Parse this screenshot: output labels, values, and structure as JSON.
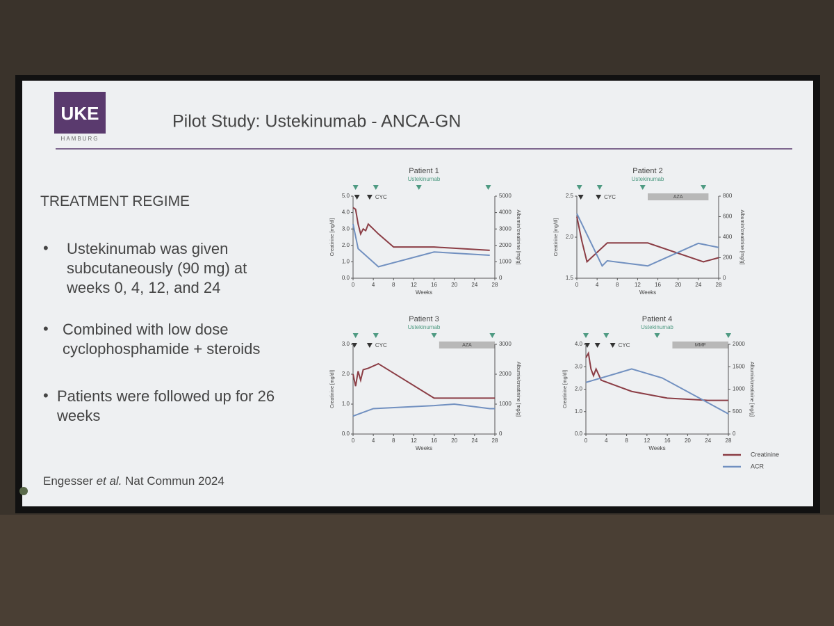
{
  "slide": {
    "logo": "UKE",
    "logo_sub": "HAMBURG",
    "title": "Pilot Study: Ustekinumab - ANCA-GN",
    "heading": "TREATMENT REGIME",
    "bullets": [
      "Ustekinumab was given subcutaneously (90 mg) at weeks 0, 4, 12, and 24",
      "Combined with low dose cyclophosphamide + steroids",
      "Patients were followed up for 26 weeks"
    ],
    "citation": {
      "authors": "Engesser",
      "etal": "et al.",
      "source": "Nat Commun 2024"
    }
  },
  "chart_data": [
    {
      "type": "line",
      "title": "Patient 1",
      "annotation": "Ustekinumab",
      "cyc_label": "CYC",
      "x_label": "Weeks",
      "y_label": "Creatinine [mg/dl]",
      "y2_label": "Albumin/creatinine [mg/g]",
      "ustekinumab_weeks": [
        0.5,
        4.5,
        13,
        26.7
      ],
      "cyc_weeks": [
        0.5,
        3
      ],
      "xlim": [
        0,
        28
      ],
      "xticks": [
        0,
        4,
        8,
        12,
        16,
        20,
        24,
        28
      ],
      "ylim": [
        0,
        5
      ],
      "yticks": [
        {
          "value": 0,
          "label": "0.0"
        },
        {
          "value": 1,
          "label": "1.0"
        },
        {
          "value": 2,
          "label": "2.0"
        },
        {
          "value": 3,
          "label": "3.0"
        },
        {
          "value": 4,
          "label": "4.0"
        },
        {
          "value": 5,
          "label": "5.0"
        }
      ],
      "y2lim": [
        0,
        5000
      ],
      "y2ticks": [
        0,
        1000,
        2000,
        3000,
        4000,
        5000
      ],
      "legend": false,
      "series": [
        {
          "name": "Creatinine",
          "color": "#8b3d45",
          "x": [
            0,
            0.5,
            1,
            1.5,
            2,
            2.5,
            3,
            4,
            5,
            8,
            16,
            27
          ],
          "values": [
            4.3,
            4.2,
            3.3,
            2.7,
            3.0,
            2.9,
            3.3,
            3.0,
            2.7,
            1.9,
            1.9,
            1.7
          ]
        },
        {
          "name": "ACR",
          "color": "#7190c0",
          "axis": "y2",
          "x": [
            0,
            1,
            5,
            16,
            27
          ],
          "values": [
            3300,
            1800,
            700,
            1600,
            1400
          ]
        }
      ]
    },
    {
      "type": "line",
      "title": "Patient 2",
      "annotation": "Ustekinumab",
      "cyc_label": "CYC",
      "x_label": "Weeks",
      "y_label": "Creatinine [mg/dl]",
      "y2_label": "Albumin/creatinine [mg/g]",
      "ustekinumab_weeks": [
        0.5,
        4.5,
        13,
        25
      ],
      "cyc_weeks": [
        0.5,
        4
      ],
      "bars": [
        {
          "label": "AZA",
          "start": 14,
          "end": 26
        }
      ],
      "xlim": [
        0,
        28
      ],
      "xticks": [
        0,
        4,
        8,
        12,
        16,
        20,
        24,
        28
      ],
      "ylim": [
        1.5,
        2.5
      ],
      "yticks": [
        1.5,
        {
          "value": 2,
          "label": "2.0"
        },
        2.5
      ],
      "y2lim": [
        0,
        800
      ],
      "y2ticks": [
        0,
        200,
        400,
        600,
        800
      ],
      "legend": false,
      "series": [
        {
          "name": "Creatinine",
          "color": "#8b3d45",
          "x": [
            0,
            1,
            2,
            6,
            14,
            25,
            28
          ],
          "values": [
            2.25,
            1.95,
            1.7,
            1.93,
            1.93,
            1.7,
            1.75
          ]
        },
        {
          "name": "ACR",
          "color": "#7190c0",
          "axis": "y2",
          "x": [
            0,
            5,
            6,
            14,
            24,
            28
          ],
          "values": [
            630,
            120,
            170,
            120,
            340,
            300
          ]
        }
      ]
    },
    {
      "type": "line",
      "title": "Patient 3",
      "annotation": "Ustekinumab",
      "cyc_label": "CYC",
      "x_label": "Weeks",
      "y_label": "Creatinine [mg/dl]",
      "y2_label": "Albumin/creatinine [mg/g]",
      "ustekinumab_weeks": [
        0.5,
        4.5,
        16,
        27.5
      ],
      "cyc_weeks": [
        0,
        3
      ],
      "bars": [
        {
          "label": "AZA",
          "start": 17,
          "end": 28
        }
      ],
      "xlim": [
        0,
        28
      ],
      "xticks": [
        0,
        4,
        8,
        12,
        16,
        20,
        24,
        28
      ],
      "ylim": [
        0,
        3
      ],
      "yticks": [
        {
          "value": 0,
          "label": "0.0"
        },
        {
          "value": 1,
          "label": "1.0"
        },
        {
          "value": 2,
          "label": "2.0"
        },
        {
          "value": 3,
          "label": "3.0"
        }
      ],
      "y2lim": [
        0,
        3000
      ],
      "y2ticks": [
        0,
        1000,
        2000,
        3000
      ],
      "legend": false,
      "series": [
        {
          "name": "Creatinine",
          "color": "#8b3d45",
          "x": [
            0,
            0.5,
            1,
            1.5,
            2,
            3,
            5,
            16,
            20,
            28
          ],
          "values": [
            2.0,
            1.6,
            2.1,
            1.8,
            2.15,
            2.2,
            2.35,
            1.2,
            1.2,
            1.2
          ]
        },
        {
          "name": "ACR",
          "color": "#7190c0",
          "axis": "y2",
          "x": [
            0,
            4,
            16,
            20,
            27,
            28
          ],
          "values": [
            600,
            850,
            950,
            1000,
            850,
            850
          ]
        }
      ]
    },
    {
      "type": "line",
      "title": "Patient 4",
      "annotation": "Ustekinumab",
      "cyc_label": "CYC",
      "x_label": "Weeks",
      "y_label": "Creatinine [mg/dl]",
      "y2_label": "Albumin/creatinine [mg/g]",
      "ustekinumab_weeks": [
        0,
        4,
        14,
        28
      ],
      "cyc_weeks": [
        0,
        2,
        5
      ],
      "bars": [
        {
          "label": "MMF",
          "start": 17,
          "end": 28
        }
      ],
      "xlim": [
        0,
        28
      ],
      "xticks": [
        0,
        4,
        8,
        12,
        16,
        20,
        24,
        28
      ],
      "ylim": [
        0,
        4
      ],
      "yticks": [
        {
          "value": 0,
          "label": "0.0"
        },
        {
          "value": 1,
          "label": "1.0"
        },
        {
          "value": 2,
          "label": "2.0"
        },
        {
          "value": 3,
          "label": "3.0"
        },
        {
          "value": 4,
          "label": "4.0"
        }
      ],
      "y2lim": [
        0,
        2000
      ],
      "y2ticks": [
        0,
        500,
        1000,
        1500,
        2000
      ],
      "legend": true,
      "series": [
        {
          "name": "Creatinine",
          "color": "#8b3d45",
          "x": [
            0,
            0.5,
            1,
            1.5,
            2,
            3,
            9,
            16,
            24,
            28
          ],
          "values": [
            3.4,
            3.6,
            2.9,
            2.6,
            2.9,
            2.4,
            1.9,
            1.6,
            1.5,
            1.5
          ]
        },
        {
          "name": "ACR",
          "color": "#7190c0",
          "axis": "y2",
          "x": [
            0,
            9,
            15,
            28
          ],
          "values": [
            1150,
            1450,
            1250,
            450
          ]
        }
      ]
    }
  ]
}
